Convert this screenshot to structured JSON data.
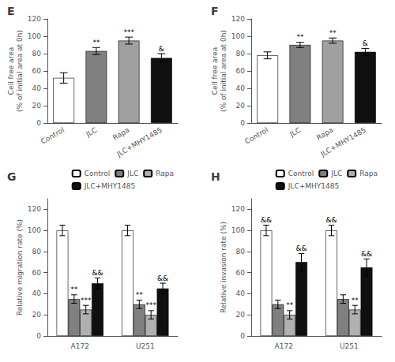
{
  "chart_data": [
    {
      "type": "bar",
      "title": "E",
      "categories": [
        "Control",
        "JLC",
        "Rapa",
        "JLC+MHY1485"
      ],
      "values": [
        52,
        83,
        95,
        75
      ],
      "errors": [
        6,
        4,
        4,
        5
      ],
      "colors": [
        "#ffffff",
        "#808080",
        "#a0a0a0",
        "#101010"
      ],
      "ylabel": "Cell free area\n(% of initial area at 0h)",
      "ylim": [
        0,
        120
      ],
      "yticks": [
        0,
        20,
        40,
        60,
        80,
        100,
        120
      ],
      "grid": false,
      "annotations": [
        {
          "category": "JLC",
          "text": "**"
        },
        {
          "category": "Rapa",
          "text": "***"
        },
        {
          "category": "JLC+MHY1485",
          "text": "&"
        }
      ]
    },
    {
      "type": "bar",
      "title": "F",
      "categories": [
        "Control",
        "JLC",
        "Rapa",
        "JLC+MHY1485"
      ],
      "values": [
        78,
        90,
        95,
        82
      ],
      "errors": [
        4,
        3,
        3,
        4
      ],
      "colors": [
        "#ffffff",
        "#808080",
        "#a0a0a0",
        "#101010"
      ],
      "ylabel": "Cell free area\n(% of initial area at 0h)",
      "ylim": [
        0,
        120
      ],
      "yticks": [
        0,
        20,
        40,
        60,
        80,
        100,
        120
      ],
      "grid": false,
      "annotations": [
        {
          "category": "JLC",
          "text": "**"
        },
        {
          "category": "Rapa",
          "text": "**"
        },
        {
          "category": "JLC+MHY1485",
          "text": "&"
        }
      ]
    },
    {
      "type": "bar",
      "title": "G",
      "categories": [
        "A172",
        "U251"
      ],
      "series": [
        {
          "name": "Control",
          "color": "#ffffff",
          "values": [
            100,
            100
          ],
          "errors": [
            5,
            5
          ]
        },
        {
          "name": "JLC",
          "color": "#808080",
          "values": [
            35,
            30
          ],
          "errors": [
            4,
            4
          ]
        },
        {
          "name": "Rapa",
          "color": "#b0b0b0",
          "values": [
            25,
            20
          ],
          "errors": [
            4,
            4
          ]
        },
        {
          "name": "JLC+MHY1485",
          "color": "#101010",
          "values": [
            50,
            45
          ],
          "errors": [
            5,
            5
          ]
        }
      ],
      "ylabel": "Relative migration rate (%)",
      "ylim": [
        0,
        130
      ],
      "yticks": [
        0,
        20,
        40,
        60,
        80,
        100,
        120
      ],
      "grid": false,
      "legend": "upper right",
      "annotations": [
        {
          "category": "A172",
          "series": "JLC",
          "text": "**"
        },
        {
          "category": "A172",
          "series": "Rapa",
          "text": "***"
        },
        {
          "category": "A172",
          "series": "JLC+MHY1485",
          "text": "&&"
        },
        {
          "category": "U251",
          "series": "JLC",
          "text": "**"
        },
        {
          "category": "U251",
          "series": "Rapa",
          "text": "***"
        },
        {
          "category": "U251",
          "series": "JLC+MHY1485",
          "text": "&&"
        }
      ]
    },
    {
      "type": "bar",
      "title": "H",
      "categories": [
        "A172",
        "U251"
      ],
      "series": [
        {
          "name": "Control",
          "color": "#ffffff",
          "values": [
            100,
            100
          ],
          "errors": [
            5,
            5
          ]
        },
        {
          "name": "JLC",
          "color": "#808080",
          "values": [
            30,
            35
          ],
          "errors": [
            4,
            4
          ]
        },
        {
          "name": "Rapa",
          "color": "#b0b0b0",
          "values": [
            20,
            25
          ],
          "errors": [
            4,
            4
          ]
        },
        {
          "name": "JLC+MHY1485",
          "color": "#101010",
          "values": [
            70,
            65
          ],
          "errors": [
            8,
            8
          ]
        }
      ],
      "ylabel": "Relative invasion rate (%)",
      "ylim": [
        0,
        130
      ],
      "yticks": [
        0,
        20,
        40,
        60,
        80,
        100,
        120
      ],
      "grid": false,
      "legend": "upper right",
      "annotations": [
        {
          "category": "A172",
          "series": "Control",
          "text": "&&"
        },
        {
          "category": "A172",
          "series": "Rapa",
          "text": "**"
        },
        {
          "category": "A172",
          "series": "JLC+MHY1485",
          "text": "&&"
        },
        {
          "category": "U251",
          "series": "Control",
          "text": "&&"
        },
        {
          "category": "U251",
          "series": "Rapa",
          "text": "**"
        },
        {
          "category": "U251",
          "series": "JLC+MHY1485",
          "text": "&&"
        }
      ]
    }
  ]
}
